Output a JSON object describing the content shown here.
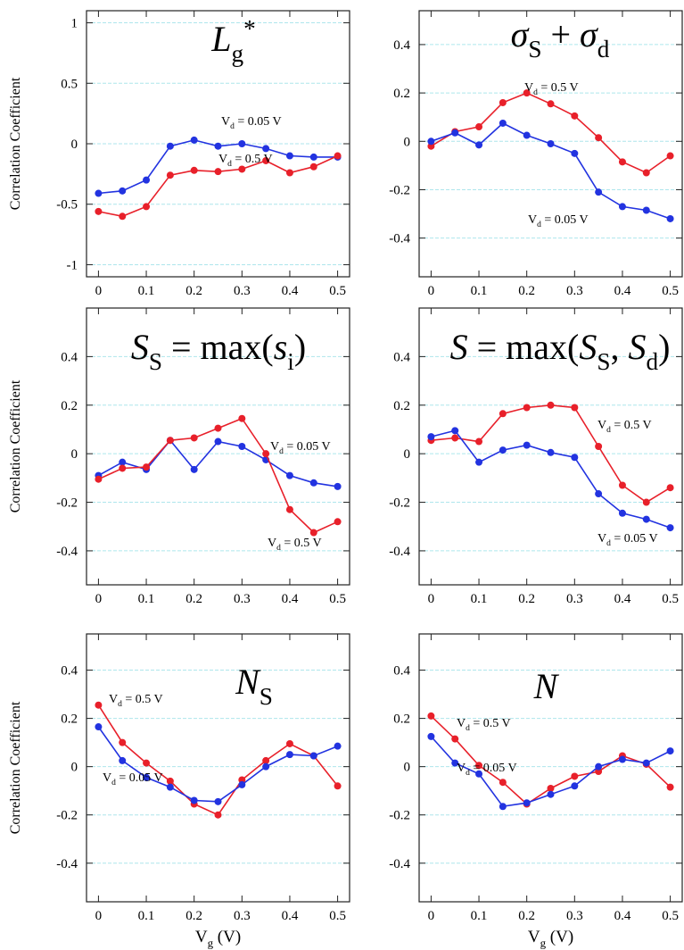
{
  "chart_data": [
    {
      "type": "line",
      "title": [
        {
          "text": "L",
          "style": "italic"
        },
        {
          "text": "g",
          "style": "sub"
        },
        {
          "text": "*",
          "style": "sup"
        }
      ],
      "ylabel": "Correlation Coefficient",
      "x": [
        0,
        0.05,
        0.1,
        0.15,
        0.2,
        0.25,
        0.3,
        0.35,
        0.4,
        0.45,
        0.5
      ],
      "series": [
        {
          "color": "#2233e0",
          "values": [
            -0.41,
            -0.39,
            -0.3,
            -0.02,
            0.03,
            -0.02,
            0.0,
            -0.04,
            -0.1,
            -0.11,
            -0.11
          ]
        },
        {
          "color": "#e8202a",
          "values": [
            -0.56,
            -0.6,
            -0.52,
            -0.26,
            -0.22,
            -0.23,
            -0.21,
            -0.14,
            -0.24,
            -0.19,
            -0.1
          ]
        }
      ],
      "annotations": [
        [
          {
            "text": "V"
          },
          {
            "text": "d",
            "style": "sub"
          },
          {
            "text": " = 0.05 V"
          }
        ],
        [
          {
            "text": "V"
          },
          {
            "text": "d",
            "style": "sub"
          },
          {
            "text": " = 0.5 V"
          }
        ]
      ],
      "xlim": [
        -0.025,
        0.525
      ],
      "ylim": [
        -1.1,
        1.1
      ],
      "xticks": [
        0,
        0.1,
        0.2,
        0.3,
        0.4,
        0.5
      ],
      "yticks": [
        -1,
        -0.5,
        0,
        0.5,
        1
      ],
      "grid": true
    },
    {
      "type": "line",
      "title": [
        {
          "text": "σ",
          "style": "italic"
        },
        {
          "text": "S",
          "style": "sub"
        },
        {
          "text": " + "
        },
        {
          "text": "σ",
          "style": "italic"
        },
        {
          "text": "d",
          "style": "sub"
        }
      ],
      "x": [
        0,
        0.05,
        0.1,
        0.15,
        0.2,
        0.25,
        0.3,
        0.35,
        0.4,
        0.45,
        0.5
      ],
      "series": [
        {
          "color": "#e8202a",
          "values": [
            -0.02,
            0.04,
            0.06,
            0.16,
            0.2,
            0.155,
            0.105,
            0.015,
            -0.085,
            -0.13,
            -0.06
          ]
        },
        {
          "color": "#2233e0",
          "values": [
            0.0,
            0.035,
            -0.015,
            0.075,
            0.025,
            -0.01,
            -0.05,
            -0.21,
            -0.27,
            -0.285,
            -0.32
          ]
        }
      ],
      "annotations": [
        [
          {
            "text": "V"
          },
          {
            "text": "d",
            "style": "sub"
          },
          {
            "text": " = 0.5 V"
          }
        ],
        [
          {
            "text": "V"
          },
          {
            "text": "d",
            "style": "sub"
          },
          {
            "text": " = 0.05 V"
          }
        ]
      ],
      "xlim": [
        -0.025,
        0.525
      ],
      "ylim": [
        -0.56,
        0.54
      ],
      "xticks": [
        0,
        0.1,
        0.2,
        0.3,
        0.4,
        0.5
      ],
      "yticks": [
        -0.4,
        -0.2,
        0,
        0.2,
        0.4
      ],
      "grid": true
    },
    {
      "type": "line",
      "title": [
        {
          "text": "S",
          "style": "italic"
        },
        {
          "text": "S",
          "style": "sub"
        },
        {
          "text": " = max("
        },
        {
          "text": "s",
          "style": "italic"
        },
        {
          "text": "i",
          "style": "sub"
        },
        {
          "text": ")"
        }
      ],
      "ylabel": "Correlation Coefficient",
      "x": [
        0,
        0.05,
        0.1,
        0.15,
        0.2,
        0.25,
        0.3,
        0.35,
        0.4,
        0.45,
        0.5
      ],
      "series": [
        {
          "color": "#2233e0",
          "values": [
            -0.09,
            -0.035,
            -0.065,
            0.055,
            -0.065,
            0.05,
            0.03,
            -0.025,
            -0.09,
            -0.12,
            -0.135
          ]
        },
        {
          "color": "#e8202a",
          "values": [
            -0.105,
            -0.06,
            -0.055,
            0.055,
            0.065,
            0.105,
            0.145,
            0.0,
            -0.23,
            -0.325,
            -0.28
          ]
        }
      ],
      "annotations": [
        [
          {
            "text": "V"
          },
          {
            "text": "d",
            "style": "sub"
          },
          {
            "text": " = 0.05 V"
          }
        ],
        [
          {
            "text": "V"
          },
          {
            "text": "d",
            "style": "sub"
          },
          {
            "text": " = 0.5 V"
          }
        ]
      ],
      "xlim": [
        -0.025,
        0.525
      ],
      "ylim": [
        -0.54,
        0.6
      ],
      "xticks": [
        0,
        0.1,
        0.2,
        0.3,
        0.4,
        0.5
      ],
      "yticks": [
        -0.4,
        -0.2,
        0,
        0.2,
        0.4
      ],
      "grid": true
    },
    {
      "type": "line",
      "title": [
        {
          "text": "S",
          "style": "italic"
        },
        {
          "text": " = max("
        },
        {
          "text": "S",
          "style": "italic"
        },
        {
          "text": "S",
          "style": "sub"
        },
        {
          "text": ", "
        },
        {
          "text": "S",
          "style": "italic"
        },
        {
          "text": "d",
          "style": "sub"
        },
        {
          "text": ")"
        }
      ],
      "x": [
        0,
        0.05,
        0.1,
        0.15,
        0.2,
        0.25,
        0.3,
        0.35,
        0.4,
        0.45,
        0.5
      ],
      "series": [
        {
          "color": "#e8202a",
          "values": [
            0.055,
            0.065,
            0.05,
            0.165,
            0.19,
            0.2,
            0.19,
            0.03,
            -0.13,
            -0.2,
            -0.14
          ]
        },
        {
          "color": "#2233e0",
          "values": [
            0.07,
            0.095,
            -0.035,
            0.015,
            0.035,
            0.005,
            -0.015,
            -0.165,
            -0.245,
            -0.27,
            -0.305
          ]
        }
      ],
      "annotations": [
        [
          {
            "text": "V"
          },
          {
            "text": "d",
            "style": "sub"
          },
          {
            "text": " = 0.5 V"
          }
        ],
        [
          {
            "text": "V"
          },
          {
            "text": "d",
            "style": "sub"
          },
          {
            "text": " = 0.05 V"
          }
        ]
      ],
      "xlim": [
        -0.025,
        0.525
      ],
      "ylim": [
        -0.54,
        0.6
      ],
      "xticks": [
        0,
        0.1,
        0.2,
        0.3,
        0.4,
        0.5
      ],
      "yticks": [
        -0.4,
        -0.2,
        0,
        0.2,
        0.4
      ],
      "grid": true
    },
    {
      "type": "line",
      "title": [
        {
          "text": "N",
          "style": "italic"
        },
        {
          "text": "S",
          "style": "sub"
        }
      ],
      "ylabel": "Correlation Coefficient",
      "xlabel": [
        {
          "text": "V"
        },
        {
          "text": "g",
          "style": "sub"
        },
        {
          "text": " (V)"
        }
      ],
      "x": [
        0,
        0.05,
        0.1,
        0.15,
        0.2,
        0.25,
        0.3,
        0.35,
        0.4,
        0.45,
        0.5
      ],
      "series": [
        {
          "color": "#e8202a",
          "values": [
            0.255,
            0.1,
            0.015,
            -0.06,
            -0.155,
            -0.2,
            -0.055,
            0.025,
            0.095,
            0.045,
            -0.08
          ]
        },
        {
          "color": "#2233e0",
          "values": [
            0.165,
            0.025,
            -0.045,
            -0.085,
            -0.14,
            -0.145,
            -0.075,
            0.0,
            0.05,
            0.045,
            0.085
          ]
        }
      ],
      "annotations": [
        [
          {
            "text": "V"
          },
          {
            "text": "d",
            "style": "sub"
          },
          {
            "text": " = 0.5 V"
          }
        ],
        [
          {
            "text": "V"
          },
          {
            "text": "d",
            "style": "sub"
          },
          {
            "text": " = 0.05 V"
          }
        ]
      ],
      "xlim": [
        -0.025,
        0.525
      ],
      "ylim": [
        -0.56,
        0.55
      ],
      "xticks": [
        0,
        0.1,
        0.2,
        0.3,
        0.4,
        0.5
      ],
      "yticks": [
        -0.4,
        -0.2,
        0,
        0.2,
        0.4
      ],
      "grid": true
    },
    {
      "type": "line",
      "title": [
        {
          "text": "N",
          "style": "italic"
        }
      ],
      "xlabel": [
        {
          "text": "V"
        },
        {
          "text": "g",
          "style": "sub"
        },
        {
          "text": " (V)"
        }
      ],
      "x": [
        0,
        0.05,
        0.1,
        0.15,
        0.2,
        0.25,
        0.3,
        0.35,
        0.4,
        0.45,
        0.5
      ],
      "series": [
        {
          "color": "#e8202a",
          "values": [
            0.21,
            0.115,
            0.005,
            -0.065,
            -0.155,
            -0.09,
            -0.04,
            -0.02,
            0.045,
            0.01,
            -0.085
          ]
        },
        {
          "color": "#2233e0",
          "values": [
            0.125,
            0.015,
            -0.03,
            -0.165,
            -0.15,
            -0.115,
            -0.08,
            0.0,
            0.03,
            0.015,
            0.065
          ]
        }
      ],
      "annotations": [
        [
          {
            "text": "V"
          },
          {
            "text": "d",
            "style": "sub"
          },
          {
            "text": " = 0.5 V"
          }
        ],
        [
          {
            "text": "V"
          },
          {
            "text": "d",
            "style": "sub"
          },
          {
            "text": " = 0.05 V"
          }
        ]
      ],
      "xlim": [
        -0.025,
        0.525
      ],
      "ylim": [
        -0.56,
        0.55
      ],
      "xticks": [
        0,
        0.1,
        0.2,
        0.3,
        0.4,
        0.5
      ],
      "yticks": [
        -0.4,
        -0.2,
        0,
        0.2,
        0.4
      ],
      "grid": true
    }
  ]
}
